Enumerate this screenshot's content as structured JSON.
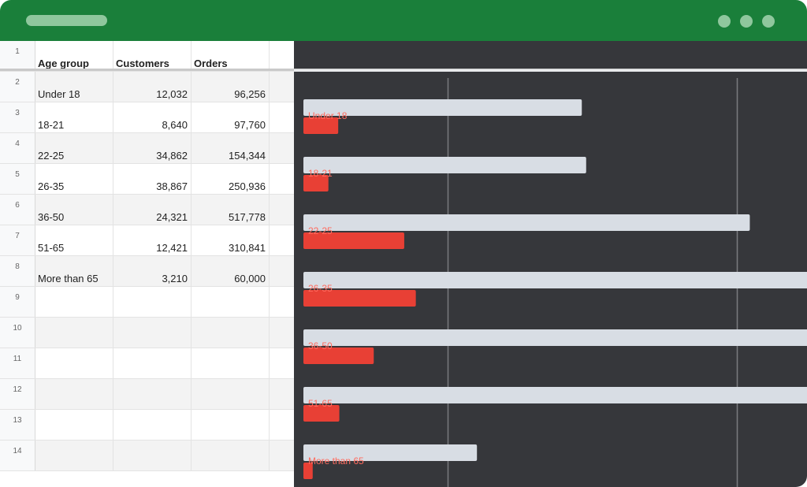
{
  "window": {
    "controls": [
      "dot",
      "dot",
      "dot"
    ]
  },
  "sheet": {
    "row_numbers": [
      "1",
      "2",
      "3",
      "4",
      "5",
      "6",
      "7",
      "8",
      "9",
      "10",
      "11",
      "12",
      "13",
      "14"
    ],
    "headers": [
      "Age group",
      "Customers",
      "Orders"
    ],
    "rows": [
      [
        "Under 18",
        "12,032",
        "96,256"
      ],
      [
        "18-21",
        "8,640",
        "97,760"
      ],
      [
        "22-25",
        "34,862",
        "154,344"
      ],
      [
        "26-35",
        "38,867",
        "250,936"
      ],
      [
        "36-50",
        "24,321",
        "517,778"
      ],
      [
        "51-65",
        "12,421",
        "310,841"
      ],
      [
        "More than 65",
        "3,210",
        "60,000"
      ]
    ]
  },
  "chart_data": {
    "type": "bar",
    "orientation": "horizontal",
    "categories": [
      "Under 18",
      "18-21",
      "22-25",
      "26-35",
      "36-50",
      "51-65",
      "More than 65"
    ],
    "series": [
      {
        "values": [
          96256,
          97760,
          154344,
          250936,
          517778,
          310841,
          60000
        ],
        "color": "#d8dde4"
      },
      {
        "values": [
          12032,
          8640,
          34862,
          38867,
          24321,
          12421,
          3210
        ],
        "color": "#e84035"
      }
    ],
    "colors": {
      "background": "#36373b",
      "gridline": "#7a7b7f",
      "label": "#ff6b5e"
    }
  }
}
